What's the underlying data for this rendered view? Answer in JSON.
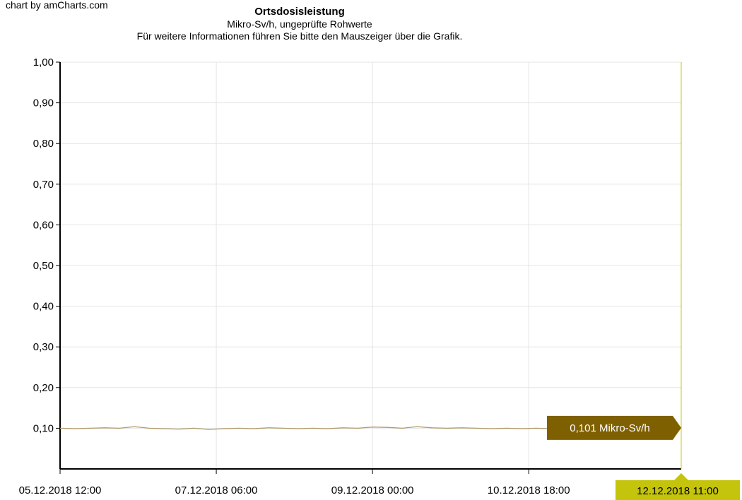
{
  "credit": "chart by amCharts.com",
  "chart_data": {
    "type": "line",
    "title": "Ortsdosisleistung",
    "subtitle": "Mikro-Sv/h, ungeprüfte Rohwerte",
    "hint": "Für weitere Informationen führen Sie bitte den Mauszeiger über die Grafik.",
    "xlabel": "",
    "ylabel": "",
    "x_range": [
      "05.12.2018 12:00",
      "12.12.2018 11:00"
    ],
    "ylim": [
      0,
      1.0
    ],
    "y_ticks": [
      "1,00",
      "0,90",
      "0,80",
      "0,70",
      "0,60",
      "0,50",
      "0,40",
      "0,30",
      "0,20",
      "0,10"
    ],
    "y_tick_values": [
      1.0,
      0.9,
      0.8,
      0.7,
      0.6,
      0.5,
      0.4,
      0.3,
      0.2,
      0.1
    ],
    "x_ticks": [
      "05.12.2018 12:00",
      "07.12.2018 06:00",
      "09.12.2018 00:00",
      "10.12.2018 18:00"
    ],
    "x_tick_hours": [
      0,
      42,
      84,
      126
    ],
    "grid": true,
    "series": [
      {
        "color": "#b09a6a",
        "x_hours": [
          0,
          4,
          8,
          12,
          16,
          20,
          24,
          28,
          32,
          36,
          40,
          44,
          48,
          52,
          56,
          60,
          64,
          68,
          72,
          76,
          80,
          84,
          88,
          92,
          96,
          100,
          104,
          108,
          112,
          116,
          120,
          124,
          128,
          132,
          136,
          140,
          144
        ],
        "values": [
          0.1,
          0.099,
          0.1,
          0.101,
          0.1,
          0.104,
          0.1,
          0.099,
          0.098,
          0.1,
          0.097,
          0.099,
          0.1,
          0.099,
          0.101,
          0.1,
          0.099,
          0.1,
          0.099,
          0.101,
          0.1,
          0.103,
          0.102,
          0.1,
          0.104,
          0.101,
          0.1,
          0.101,
          0.1,
          0.099,
          0.1,
          0.099,
          0.1,
          0.099,
          0.098,
          0.099,
          0.101
        ]
      }
    ],
    "cursor": {
      "value_label": "0,101 Mikro-Sv/h",
      "date_label": "12.12.2018 11:00",
      "balloon_color": "#7f6000",
      "category_color": "#c4c40c",
      "line_color": "#c4c40c"
    },
    "axis_span_hours": 167
  }
}
